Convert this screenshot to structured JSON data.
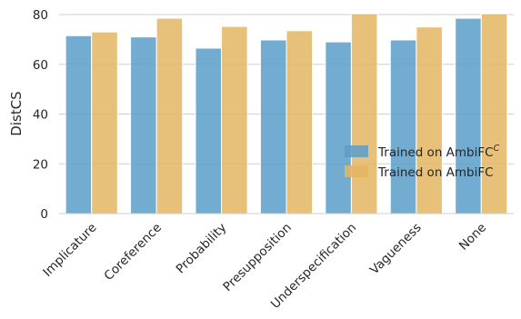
{
  "chart_data": {
    "type": "bar",
    "title": "",
    "xlabel": "",
    "ylabel": "DistCS",
    "ylim": [
      0,
      80
    ],
    "yticks": [
      0,
      20,
      40,
      60,
      80
    ],
    "grid": "horizontal",
    "legend_position": "center-right",
    "categories": [
      "Implicature",
      "Coreference",
      "Probability",
      "Presupposition",
      "Underspecification",
      "Vagueness",
      "None"
    ],
    "series": [
      {
        "name": "Trained on AmbiFC",
        "name_superscript": "C",
        "color": "#5b9ec9",
        "values": [
          71.5,
          71.0,
          66.5,
          69.8,
          69.0,
          69.8,
          78.5
        ]
      },
      {
        "name": "Trained on AmbiFC",
        "name_superscript": "",
        "color": "#e3b563",
        "values": [
          73.0,
          78.5,
          75.2,
          73.5,
          80.3,
          75.0,
          80.3
        ]
      }
    ]
  }
}
